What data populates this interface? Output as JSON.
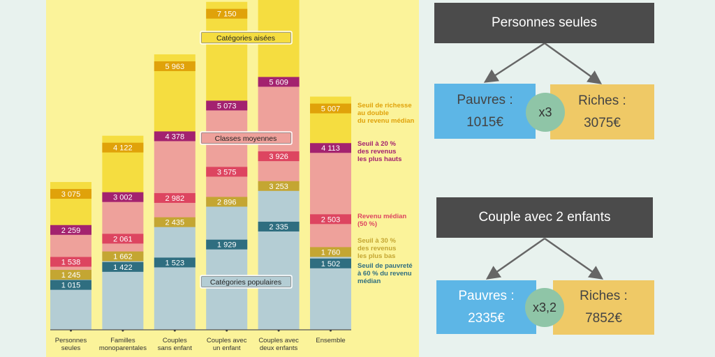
{
  "chart_data": {
    "type": "bar",
    "stacked": true,
    "categories": [
      "Personnes\nseules",
      "Familles\nmonoparentales",
      "Couples\nsans enfant",
      "Couples avec\nun enfant",
      "Couples avec\ndeux enfants",
      "Ensemble"
    ],
    "thresholds": [
      {
        "name": "Seuil de pauvreté à 60 % du revenu médian",
        "color": "#2f6e80",
        "values": [
          1015,
          1422,
          1523,
          1929,
          2335,
          1502
        ]
      },
      {
        "name": "Seuil à 30 % des revenus les plus bas",
        "color": "#c4a632",
        "values": [
          1245,
          1662,
          2435,
          2896,
          3253,
          1760
        ]
      },
      {
        "name": "Revenu médian (50 %)",
        "color": "#dd4560",
        "values": [
          1538,
          2061,
          2982,
          3575,
          3926,
          2503
        ]
      },
      {
        "name": "Seuil à 20 % des revenus les plus hauts",
        "color": "#a3226f",
        "values": [
          2259,
          3002,
          4378,
          5073,
          5609,
          4113
        ]
      },
      {
        "name": "Seuil de richesse au double du revenu médian",
        "color": "#e0a20a",
        "values": [
          3075,
          4122,
          5963,
          7150,
          null,
          5007
        ]
      }
    ],
    "value_labels": [
      [
        "1 015",
        "1 245",
        "1 538",
        "2 259",
        "3 075"
      ],
      [
        "1 422",
        "1 662",
        "2 061",
        "3 002",
        "4 122"
      ],
      [
        "1 523",
        "2 435",
        "2 982",
        "4 378",
        "5 963"
      ],
      [
        "1 929",
        "2 896",
        "3 575",
        "5 073",
        "7 150"
      ],
      [
        "2 335",
        "3 253",
        "3 926",
        "5 609",
        null
      ],
      [
        "1 502",
        "1 760",
        "2 503",
        "4 113",
        "5 007"
      ]
    ],
    "zones": [
      {
        "label": "Catégories populaires",
        "color": "#b4cdd4"
      },
      {
        "label": "Classes moyennes",
        "color": "#eea19b"
      },
      {
        "label": "Catégories aisées",
        "color": "#f5dd40"
      }
    ],
    "legend": [
      {
        "lines": [
          "Seuil de richesse",
          "au double",
          "du revenu médian"
        ],
        "color": "#e0a20a"
      },
      {
        "lines": [
          "Seuil à 20 %",
          "des revenus",
          "les plus hauts"
        ],
        "color": "#a3226f"
      },
      {
        "lines": [
          "Revenu médian",
          "(50 %)"
        ],
        "color": "#dd4560"
      },
      {
        "lines": [
          "Seuil à 30 %",
          "des revenus",
          "les plus bas"
        ],
        "color": "#c4a632"
      },
      {
        "lines": [
          "Seuil de pauvreté",
          "à 60 % du revenu",
          "médian"
        ],
        "color": "#2f6e80"
      }
    ],
    "legend_placement": "right",
    "grid": false,
    "ylim": [
      0,
      7450
    ]
  },
  "comparisons": [
    {
      "title": "Personnes seules",
      "poor_label": "Pauvres :",
      "poor_value": "1015€",
      "rich_label": "Riches :",
      "rich_value": "3075€",
      "ratio": "x3"
    },
    {
      "title": "Couple avec 2 enfants",
      "poor_label": "Pauvres :",
      "poor_value": "2335€",
      "rich_label": "Riches :",
      "rich_value": "7852€",
      "ratio": "x3,2"
    }
  ],
  "colors": {
    "poor": "#5db6e6",
    "rich": "#efc966",
    "ratio": "#8fc5a7",
    "title": "#4b4b4b",
    "chart_bg": "#fbf39a"
  }
}
